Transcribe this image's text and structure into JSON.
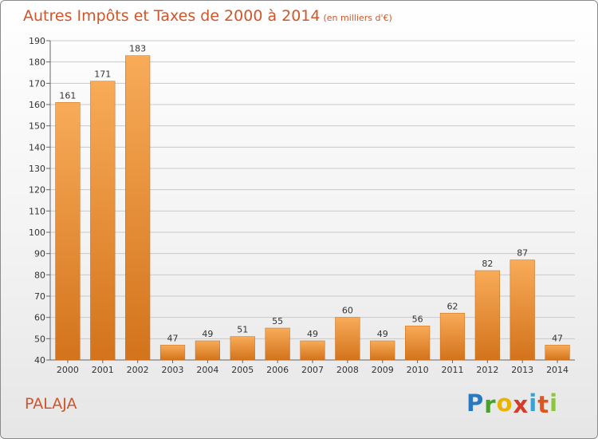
{
  "header": {
    "title": "Autres Impôts et Taxes de 2000 à 2014",
    "unit": "(en milliers d'€)"
  },
  "footer": {
    "commune": "PALAJA",
    "brand_letters": [
      "P",
      "r",
      "o",
      "x",
      "i",
      "t",
      "i"
    ],
    "brand_colors": [
      "#2b78c2",
      "#4aa02c",
      "#e8b400",
      "#d63a2a",
      "#3aa1d8",
      "#e0541e",
      "#8cc63f"
    ]
  },
  "colors": {
    "bar_top": "#f8ab58",
    "bar_bottom": "#d3731c",
    "grid": "#c9c9c9",
    "axis_text": "#333333",
    "title": "#d0552a"
  },
  "chart_data": {
    "type": "bar",
    "title": "Autres Impôts et Taxes de 2000 à 2014",
    "subtitle": "(en milliers d'€)",
    "categories": [
      "2000",
      "2001",
      "2002",
      "2003",
      "2004",
      "2005",
      "2006",
      "2007",
      "2008",
      "2009",
      "2010",
      "2011",
      "2012",
      "2013",
      "2014"
    ],
    "values": [
      161,
      171,
      183,
      47,
      49,
      51,
      55,
      49,
      60,
      49,
      56,
      62,
      82,
      87,
      47
    ],
    "ylim": [
      40,
      190
    ],
    "yticks": [
      40,
      50,
      60,
      70,
      80,
      90,
      100,
      110,
      120,
      130,
      140,
      150,
      160,
      170,
      180,
      190
    ],
    "grid": true,
    "data_labels": true
  }
}
